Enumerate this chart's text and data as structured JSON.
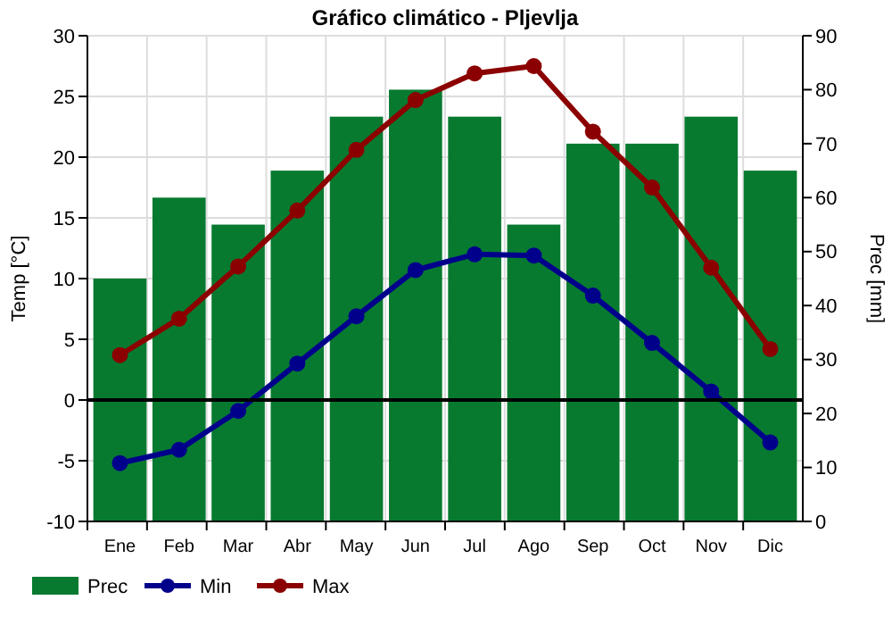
{
  "chart_data": {
    "type": "bar",
    "title": "Gráfico climático - Pljevlja",
    "ylabel": "Temp [°C]",
    "y2label": "Prec [mm]",
    "categories": [
      "Ene",
      "Feb",
      "Mar",
      "Abr",
      "May",
      "Jun",
      "Jul",
      "Ago",
      "Sep",
      "Oct",
      "Nov",
      "Dic"
    ],
    "series": [
      {
        "name": "Prec",
        "axis": "y2",
        "color": "#077a30",
        "values": [
          45,
          60,
          55,
          65,
          75,
          80,
          75,
          55,
          70,
          70,
          75,
          65
        ]
      },
      {
        "name": "Min",
        "type": "line",
        "color": "#00008b",
        "values": [
          -5.2,
          -4.1,
          -0.9,
          3.0,
          6.9,
          10.7,
          12.0,
          11.9,
          8.6,
          4.7,
          0.7,
          -3.5
        ]
      },
      {
        "name": "Max",
        "type": "line",
        "color": "#8b0000",
        "values": [
          3.7,
          6.7,
          11.0,
          15.6,
          20.6,
          24.7,
          26.9,
          27.5,
          22.1,
          17.5,
          10.9,
          4.2
        ]
      }
    ],
    "ylim": [
      -10,
      30
    ],
    "yticks": [
      -10,
      -5,
      0,
      5,
      10,
      15,
      20,
      25,
      30
    ],
    "y2lim": [
      0,
      90
    ],
    "y2ticks": [
      0,
      10,
      20,
      30,
      40,
      50,
      60,
      70,
      80,
      90
    ],
    "ref_lines": [
      {
        "axis": "y",
        "value": 0,
        "color": "#000000"
      }
    ],
    "grid": true,
    "legend": "bottom",
    "marker": "circle",
    "line_style": "solid"
  }
}
